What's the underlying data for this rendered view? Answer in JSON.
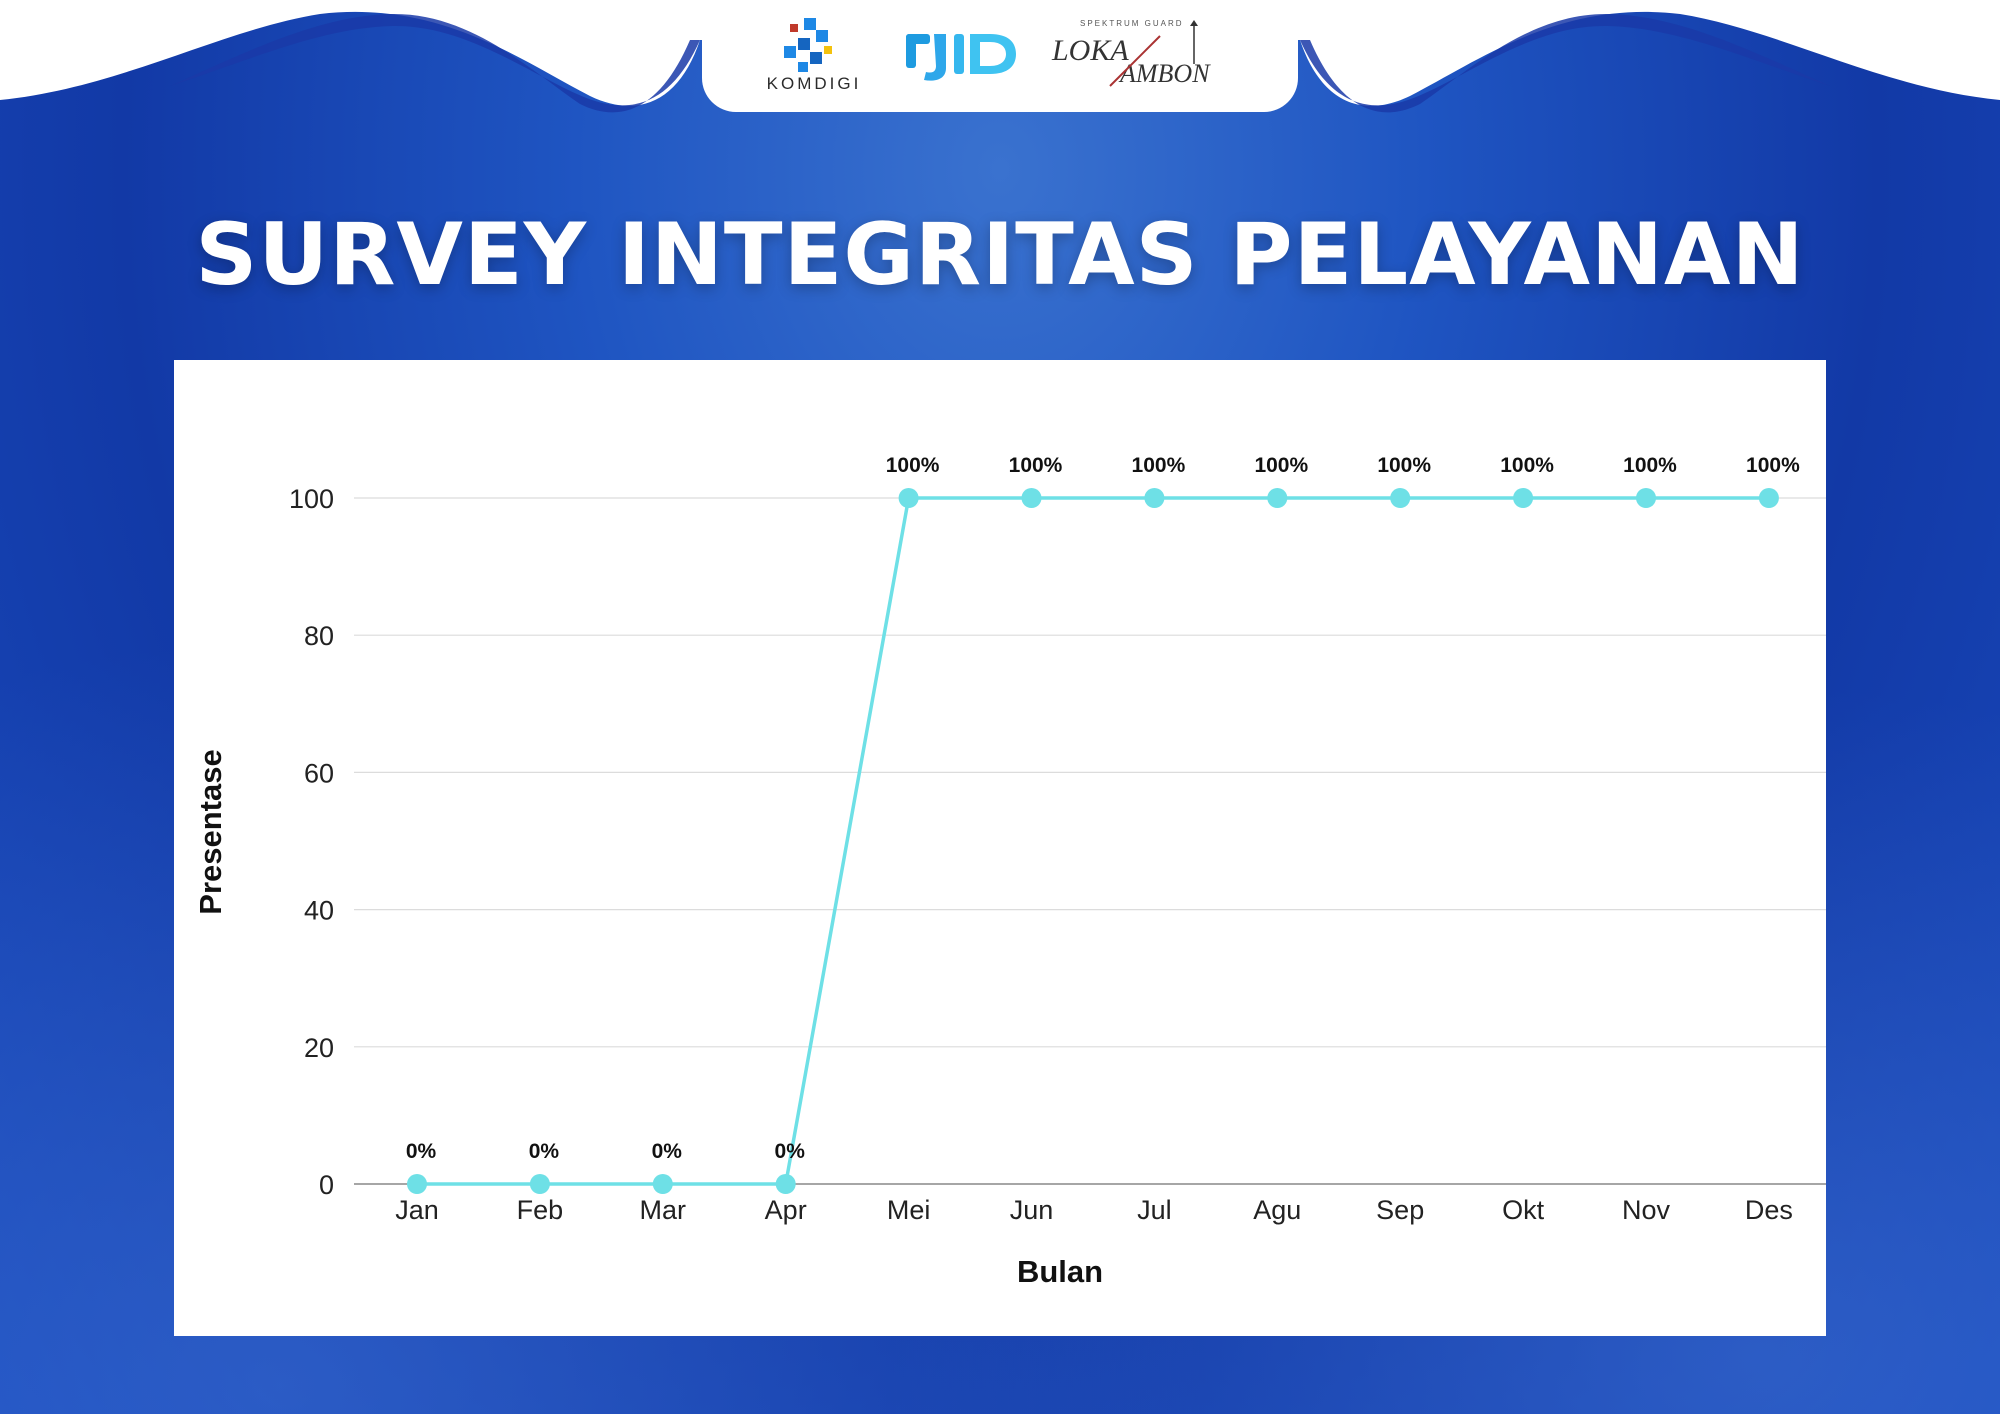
{
  "header": {
    "logos": [
      {
        "name": "komdigi-logo",
        "text": "KOMDIGI"
      },
      {
        "name": "djid-logo",
        "text": "DJID"
      },
      {
        "name": "loka-ambon-logo",
        "text": "LOKA AMBON",
        "subtext": "SPEKTRUM GUARD"
      }
    ]
  },
  "title": "SURVEY INTEGRITAS PELAYANAN",
  "colors": {
    "background": "#1f4fbf",
    "line": "#6ee0e6",
    "title_text": "#ffffff"
  },
  "chart_data": {
    "type": "line",
    "title": "",
    "xlabel": "Bulan",
    "ylabel": "Presentase",
    "categories": [
      "Jan",
      "Feb",
      "Mar",
      "Apr",
      "Mei",
      "Jun",
      "Jul",
      "Agu",
      "Sep",
      "Okt",
      "Nov",
      "Des"
    ],
    "series": [
      {
        "values": [
          0,
          0,
          0,
          0,
          100,
          100,
          100,
          100,
          100,
          100,
          100,
          100
        ],
        "labels": [
          "0%",
          "0%",
          "0%",
          "0%",
          "100%",
          "100%",
          "100%",
          "100%",
          "100%",
          "100%",
          "100%",
          "100%"
        ]
      }
    ],
    "ylim": [
      0,
      110
    ],
    "yticks": [
      0,
      20,
      40,
      60,
      80,
      100
    ],
    "grid": true,
    "legend": "none"
  }
}
